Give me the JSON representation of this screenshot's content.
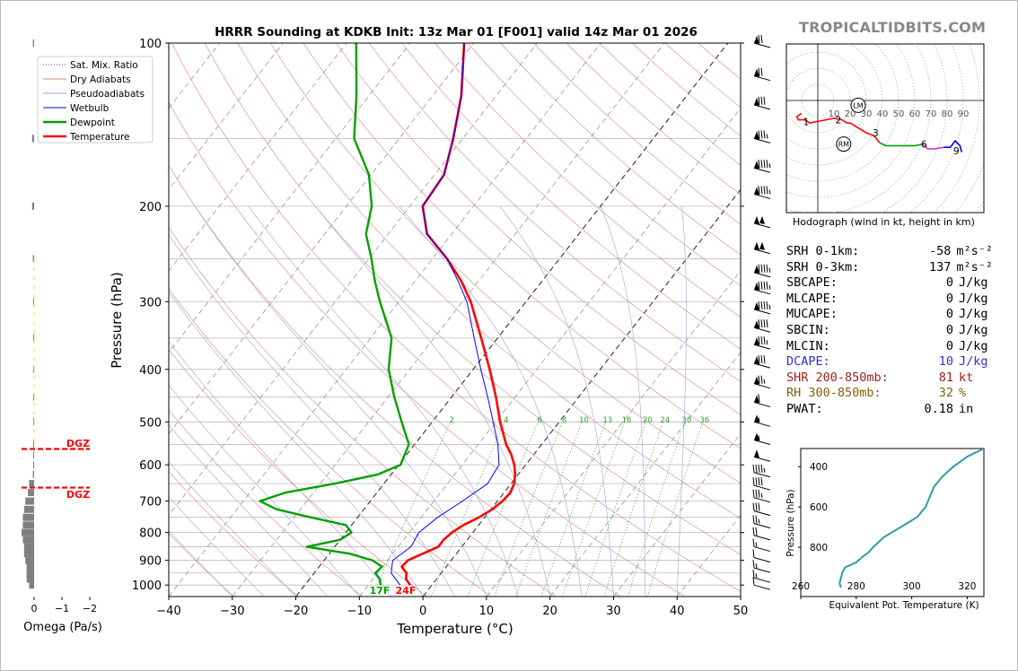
{
  "brand": "TROPICALTIDBITS.COM",
  "skewt": {
    "title": "HRRR Sounding at KDKB Init: 13z Mar 01 [F001] valid 14z Mar 01 2026",
    "xlabel": "Temperature (°C)",
    "ylabel": "Pressure (hPa)",
    "x_ticks": [
      "−40",
      "−30",
      "−20",
      "−10",
      "0",
      "10",
      "20",
      "30",
      "40",
      "50"
    ],
    "y_ticks": [
      "100",
      "200",
      "300",
      "400",
      "500",
      "600",
      "700",
      "800",
      "900",
      "1000"
    ],
    "surface_dewpoint_label": "17F",
    "surface_temp_label": "24F",
    "mixing_ratio_labels": [
      "2",
      "4",
      "6",
      "8",
      "10",
      "13",
      "16",
      "20",
      "24",
      "30",
      "36"
    ]
  },
  "legend": {
    "items": [
      {
        "label": "Sat. Mix. Ratio",
        "color": "#555555",
        "style": "dotted"
      },
      {
        "label": "Dry Adiabats",
        "color": "#e08080",
        "style": "solid"
      },
      {
        "label": "Pseudoadiabats",
        "color": "#a0a0d8",
        "style": "solid"
      },
      {
        "label": "Wetbulb",
        "color": "#0000ff",
        "style": "solid"
      },
      {
        "label": "Dewpoint",
        "color": "#00a000",
        "style": "thick"
      },
      {
        "label": "Temperature",
        "color": "#ff0000",
        "style": "thick"
      }
    ]
  },
  "omega": {
    "xlabel": "Omega (Pa/s)",
    "x_ticks": [
      "0",
      "−1",
      "−2"
    ],
    "dgz_label_top": "DGZ",
    "dgz_label_bottom": "DGZ"
  },
  "hodograph": {
    "caption": "Hodograph (wind in kt, height in km)",
    "ring_labels": [
      "10",
      "20",
      "30",
      "40",
      "50",
      "60",
      "70",
      "80",
      "90"
    ],
    "height_labels": [
      "1",
      "2",
      "3",
      "6",
      "9"
    ],
    "lm_label": "LM",
    "rm_label": "RM"
  },
  "stats": [
    {
      "label": "SRH 0-1km:",
      "value": "-58",
      "unit": "m²s⁻²",
      "color": "#000000"
    },
    {
      "label": "SRH 0-3km:",
      "value": "137",
      "unit": "m²s⁻²",
      "color": "#000000"
    },
    {
      "label": "SBCAPE:",
      "value": "0",
      "unit": "J/kg",
      "color": "#000000"
    },
    {
      "label": "MLCAPE:",
      "value": "0",
      "unit": "J/kg",
      "color": "#000000"
    },
    {
      "label": "MUCAPE:",
      "value": "0",
      "unit": "J/kg",
      "color": "#000000"
    },
    {
      "label": "SBCIN:",
      "value": "0",
      "unit": "J/kg",
      "color": "#000000"
    },
    {
      "label": "MLCIN:",
      "value": "0",
      "unit": "J/kg",
      "color": "#000000"
    },
    {
      "label": "DCAPE:",
      "value": "10",
      "unit": "J/kg",
      "color": "#3030cc"
    },
    {
      "label": "SHR 200-850mb:",
      "value": "81",
      "unit": "kt",
      "color": "#a02020"
    },
    {
      "label": "RH 300-850mb:",
      "value": "32",
      "unit": "%",
      "color": "#806010"
    },
    {
      "label": "PWAT:",
      "value": "0.18",
      "unit": "in",
      "color": "#000000"
    }
  ],
  "theta_e_panel": {
    "xlabel": "Equivalent Pot. Temperature (K)",
    "ylabel": "Pressure (hPa)",
    "x_ticks": [
      "260",
      "280",
      "300",
      "320"
    ],
    "y_ticks": [
      "400",
      "600",
      "800"
    ]
  },
  "chart_data": [
    {
      "type": "line",
      "title": "HRRR Sounding at KDKB Init: 13z Mar 01 [F001] valid 14z Mar 01 2026",
      "xlabel": "Temperature (°C)",
      "ylabel": "Pressure (hPa)",
      "xlim": [
        -40,
        50
      ],
      "ylim": [
        1050,
        100
      ],
      "y_scale": "log",
      "skew": "skew-T log-P",
      "legend_position": "top-left",
      "grid": true,
      "series": [
        {
          "name": "Temperature",
          "color": "#ff0000",
          "points": [
            [
              1000,
              -3.4
            ],
            [
              975,
              -4.8
            ],
            [
              950,
              -5.5
            ],
            [
              925,
              -7.0
            ],
            [
              900,
              -6.8
            ],
            [
              875,
              -5.3
            ],
            [
              850,
              -3.7
            ],
            [
              825,
              -3.7
            ],
            [
              800,
              -3.3
            ],
            [
              775,
              -2.4
            ],
            [
              750,
              -0.9
            ],
            [
              725,
              0.2
            ],
            [
              700,
              0.8
            ],
            [
              675,
              1.0
            ],
            [
              650,
              0.5
            ],
            [
              625,
              -0.5
            ],
            [
              600,
              -1.8
            ],
            [
              575,
              -3.5
            ],
            [
              550,
              -5.6
            ],
            [
              500,
              -9.3
            ],
            [
              450,
              -13.0
            ],
            [
              400,
              -17.4
            ],
            [
              350,
              -22.6
            ],
            [
              300,
              -28.7
            ],
            [
              275,
              -32.7
            ],
            [
              250,
              -37.7
            ],
            [
              225,
              -43.9
            ],
            [
              200,
              -48.0
            ],
            [
              175,
              -48.5
            ],
            [
              150,
              -51.5
            ],
            [
              125,
              -55.5
            ],
            [
              100,
              -61.5
            ]
          ]
        },
        {
          "name": "Wetbulb",
          "color": "#0000ff",
          "points": [
            [
              1000,
              -5.0
            ],
            [
              950,
              -7.9
            ],
            [
              900,
              -9.2
            ],
            [
              850,
              -8.0
            ],
            [
              800,
              -8.5
            ],
            [
              750,
              -7.4
            ],
            [
              700,
              -5.5
            ],
            [
              650,
              -3.7
            ],
            [
              600,
              -4.2
            ],
            [
              550,
              -6.9
            ],
            [
              500,
              -10.4
            ],
            [
              450,
              -14.3
            ],
            [
              400,
              -18.8
            ],
            [
              350,
              -23.7
            ],
            [
              300,
              -29.3
            ],
            [
              275,
              -33.2
            ],
            [
              250,
              -37.7
            ],
            [
              225,
              -43.9
            ],
            [
              200,
              -48.0
            ],
            [
              175,
              -48.5
            ],
            [
              150,
              -51.5
            ],
            [
              125,
              -55.5
            ],
            [
              100,
              -61.5
            ]
          ]
        },
        {
          "name": "Dewpoint",
          "color": "#00a000",
          "points": [
            [
              1000,
              -8.1
            ],
            [
              975,
              -8.9
            ],
            [
              950,
              -10.4
            ],
            [
              925,
              -10.1
            ],
            [
              900,
              -12.4
            ],
            [
              875,
              -16.8
            ],
            [
              850,
              -24.4
            ],
            [
              825,
              -20.0
            ],
            [
              800,
              -19.1
            ],
            [
              775,
              -20.9
            ],
            [
              750,
              -27.4
            ],
            [
              725,
              -33.7
            ],
            [
              700,
              -37.4
            ],
            [
              675,
              -34.4
            ],
            [
              650,
              -27.8
            ],
            [
              625,
              -22.1
            ],
            [
              600,
              -19.7
            ],
            [
              550,
              -20.9
            ],
            [
              500,
              -24.8
            ],
            [
              450,
              -29.0
            ],
            [
              400,
              -33.3
            ],
            [
              350,
              -36.7
            ],
            [
              300,
              -43.0
            ],
            [
              275,
              -46.3
            ],
            [
              250,
              -49.6
            ],
            [
              225,
              -53.5
            ],
            [
              200,
              -56.0
            ],
            [
              175,
              -60.3
            ],
            [
              150,
              -67.1
            ],
            [
              125,
              -72.0
            ],
            [
              100,
              -78.5
            ]
          ]
        }
      ]
    },
    {
      "type": "bar",
      "title": "",
      "xlabel": "Omega (Pa/s)",
      "xlim": [
        0.2,
        -2.2
      ],
      "orientation": "horizontal",
      "categories": [
        "1000",
        "975",
        "950",
        "925",
        "900",
        "875",
        "850",
        "825",
        "800",
        "775",
        "750",
        "725",
        "700",
        "675",
        "650",
        "625",
        "600",
        "575",
        "550",
        "500",
        "450",
        "400",
        "350",
        "300",
        "250",
        "200",
        "150",
        "100"
      ],
      "values": [
        0.2,
        0.3,
        0.3,
        0.3,
        0.35,
        0.4,
        0.4,
        0.45,
        0.5,
        0.45,
        0.45,
        0.4,
        0.35,
        0.25,
        0.2,
        0.05,
        0.02,
        0.02,
        0.02,
        0.02,
        0.02,
        0.02,
        0.02,
        0.02,
        0.05,
        0.08,
        0.08,
        0.05
      ],
      "dgz_layers_hpa": [
        561,
        661
      ]
    },
    {
      "type": "line",
      "title": "Hodograph (wind in kt, height in km)",
      "units": "kt",
      "x": [
        -10,
        -13,
        -12,
        -8,
        -5,
        0,
        5,
        10,
        15,
        18,
        20,
        25,
        30,
        35,
        38,
        42,
        48,
        55,
        60,
        65,
        68,
        72,
        78,
        82,
        85,
        88,
        89
      ],
      "y": [
        -8,
        -10,
        -12,
        -12,
        -14,
        -13,
        -12,
        -11,
        -12,
        -14,
        -14,
        -17,
        -20,
        -22,
        -26,
        -28,
        -28,
        -28,
        -28,
        -27,
        -30,
        -30,
        -29,
        -29,
        -25,
        -28,
        -32
      ],
      "height_markers_km": [
        {
          "km": "1",
          "u": -5,
          "v": -13
        },
        {
          "km": "2",
          "u": 15,
          "v": -12
        },
        {
          "km": "3",
          "u": 38,
          "v": -20
        },
        {
          "km": "6",
          "u": 68,
          "v": -27
        },
        {
          "km": "9",
          "u": 88,
          "v": -31
        }
      ],
      "storm_motion": {
        "LM": {
          "u": 25,
          "v": -3
        },
        "RM": {
          "u": 16,
          "v": -27
        }
      }
    },
    {
      "type": "line",
      "title": "",
      "xlabel": "Equivalent Pot. Temperature (K)",
      "ylabel": "Pressure (hPa)",
      "xlim": [
        260,
        326
      ],
      "ylim": [
        1000,
        300
      ],
      "points": [
        [
          1000,
          274.5
        ],
        [
          980,
          274.0
        ],
        [
          950,
          274.5
        ],
        [
          925,
          275.0
        ],
        [
          900,
          276.0
        ],
        [
          875,
          280.0
        ],
        [
          850,
          282.0
        ],
        [
          825,
          284.5
        ],
        [
          800,
          286.0
        ],
        [
          775,
          288.0
        ],
        [
          750,
          290.0
        ],
        [
          725,
          293.0
        ],
        [
          700,
          296.0
        ],
        [
          675,
          299.0
        ],
        [
          650,
          302.0
        ],
        [
          600,
          305.0
        ],
        [
          550,
          306.5
        ],
        [
          500,
          308.0
        ],
        [
          450,
          311.0
        ],
        [
          400,
          315.0
        ],
        [
          350,
          320.0
        ],
        [
          310,
          326.0
        ]
      ]
    }
  ]
}
